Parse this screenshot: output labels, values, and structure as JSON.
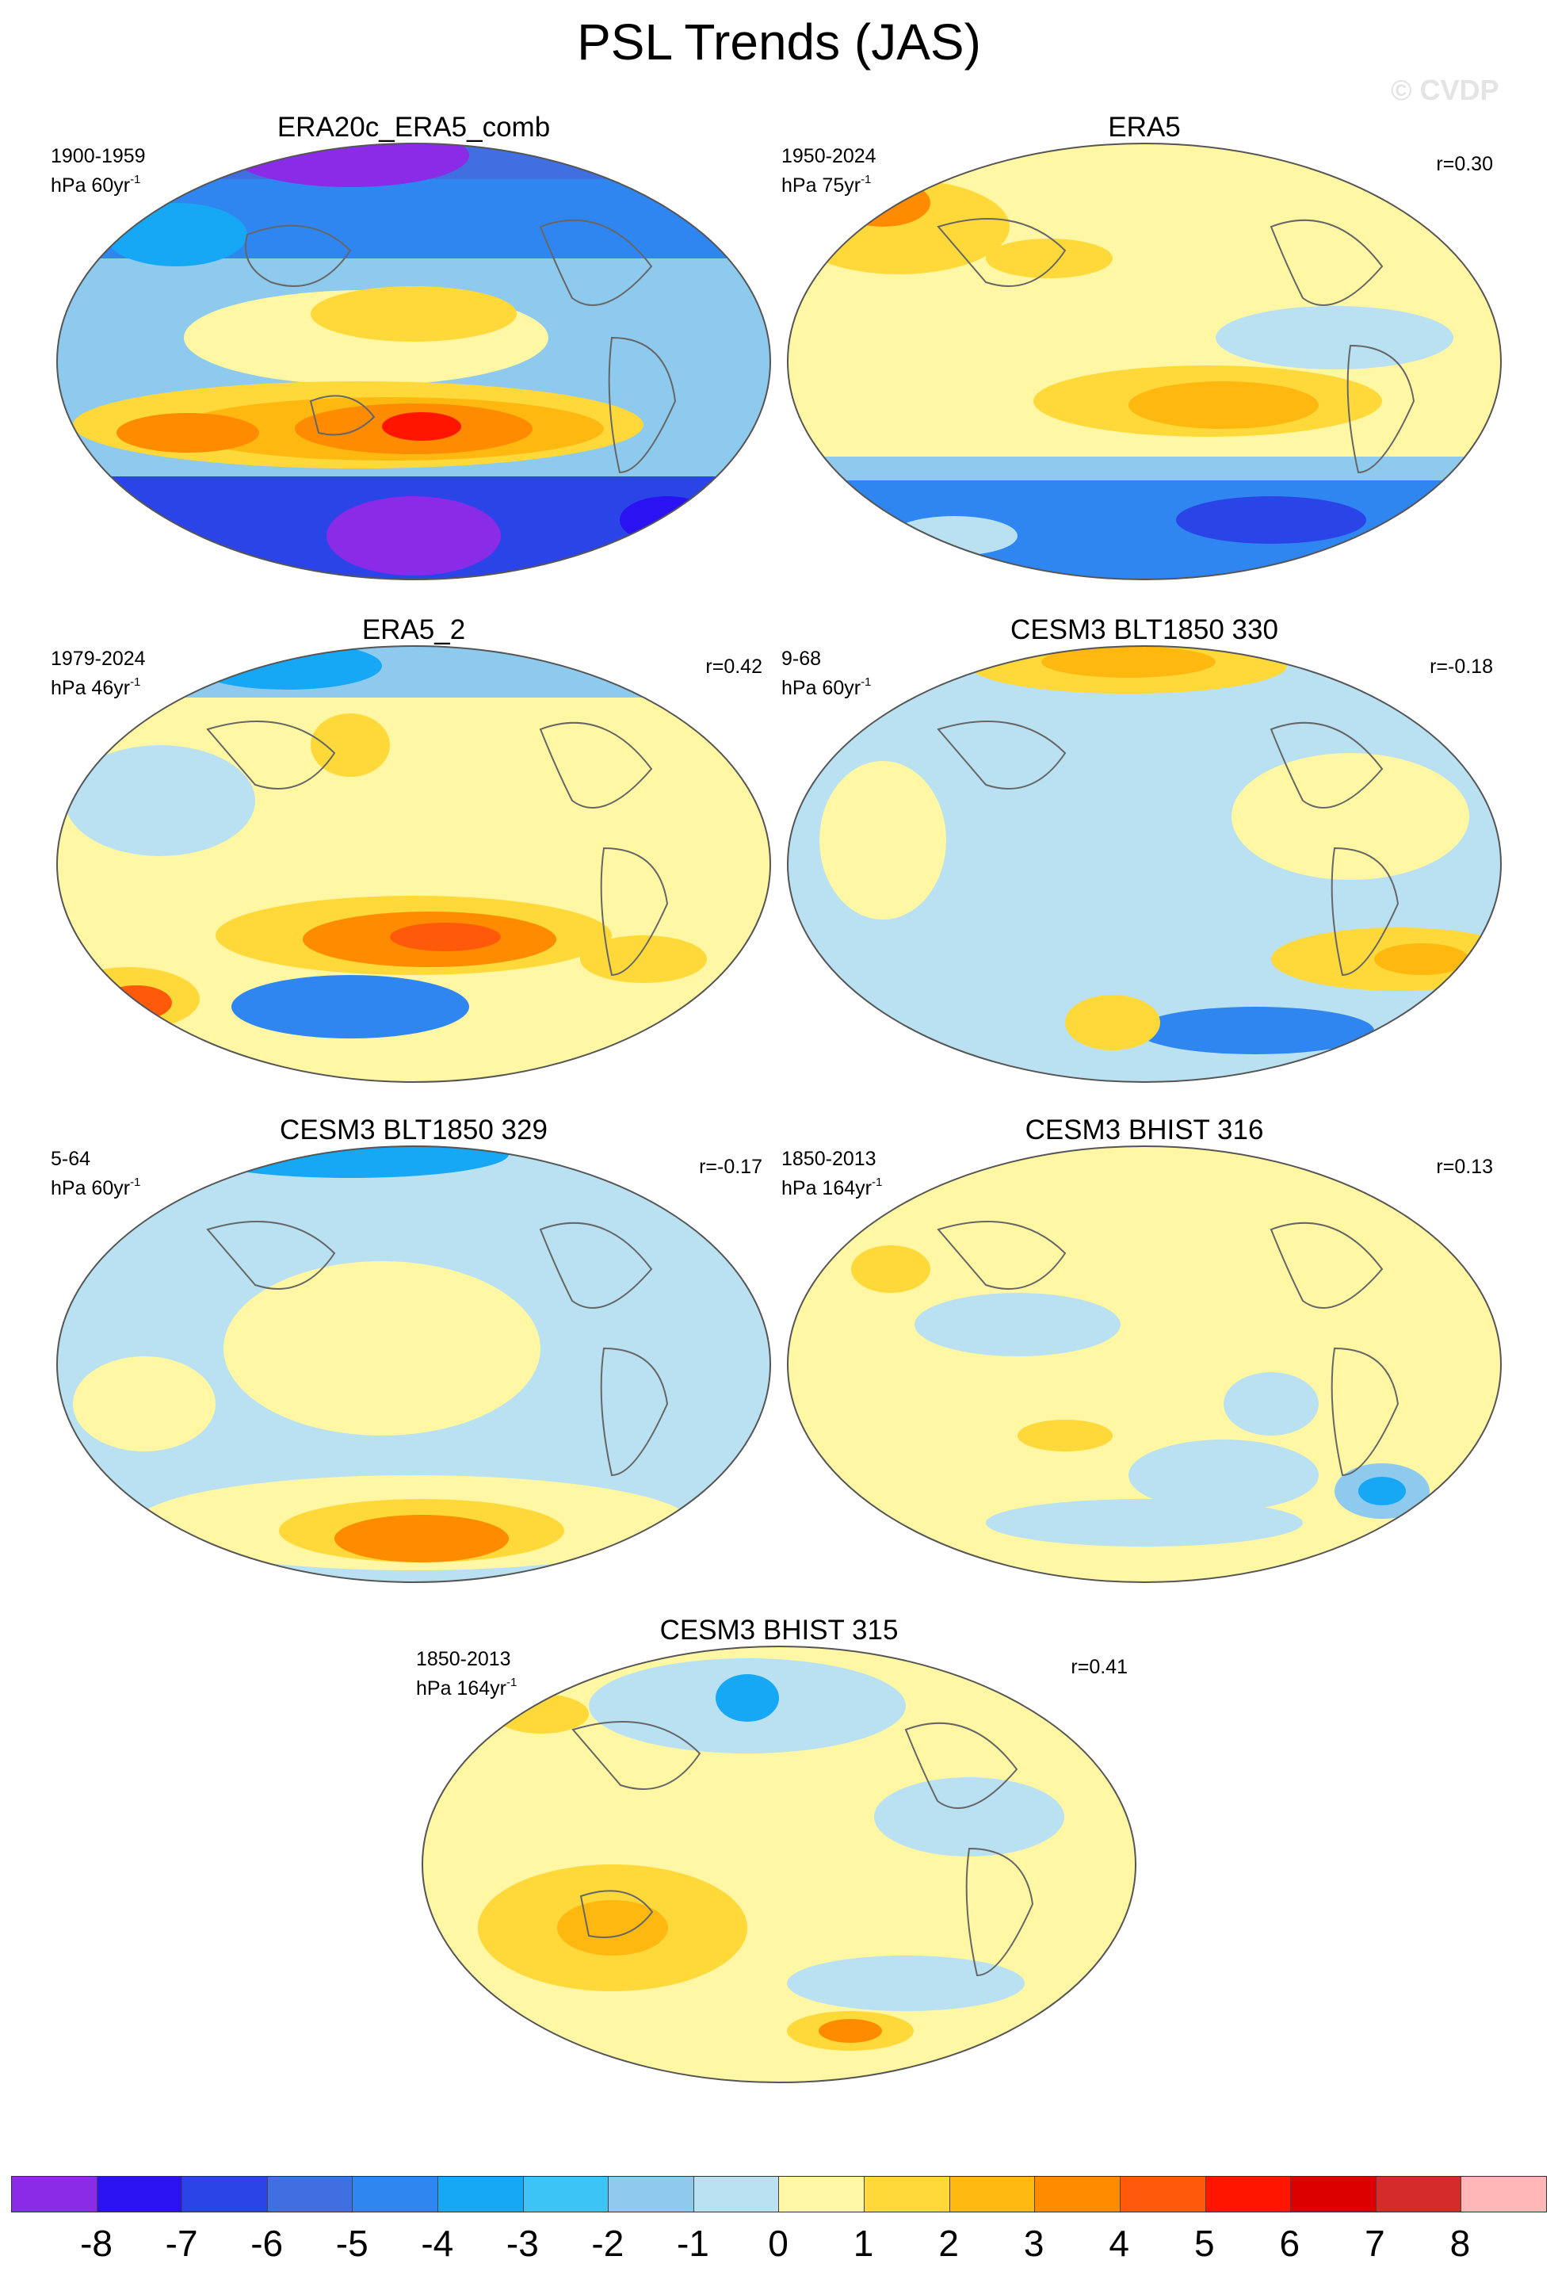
{
  "figure": {
    "title": "PSL Trends (JAS)",
    "watermark": "© CVDP"
  },
  "panels": [
    {
      "title": "ERA20c_ERA5_comb",
      "period": "1900-1959",
      "units_base": "hPa 60yr",
      "units_exp": "-1",
      "corr": ""
    },
    {
      "title": "ERA5",
      "period": "1950-2024",
      "units_base": "hPa 75yr",
      "units_exp": "-1",
      "corr": "r=0.30"
    },
    {
      "title": "ERA5_2",
      "period": "1979-2024",
      "units_base": "hPa 46yr",
      "units_exp": "-1",
      "corr": "r=0.42"
    },
    {
      "title": "CESM3 BLT1850 330",
      "period": "9-68",
      "units_base": "hPa 60yr",
      "units_exp": "-1",
      "corr": "r=-0.18"
    },
    {
      "title": "CESM3 BLT1850 329",
      "period": "5-64",
      "units_base": "hPa 60yr",
      "units_exp": "-1",
      "corr": "r=-0.17"
    },
    {
      "title": "CESM3 BHIST 316",
      "period": "1850-2013",
      "units_base": "hPa 164yr",
      "units_exp": "-1",
      "corr": "r=0.13"
    },
    {
      "title": "CESM3 BHIST 315",
      "period": "1850-2013",
      "units_base": "hPa 164yr",
      "units_exp": "-1",
      "corr": "r=0.41"
    }
  ],
  "colorbar": {
    "colors": [
      "#8a2be8",
      "#2a12f2",
      "#2a44e8",
      "#3f6fe0",
      "#2f86f0",
      "#17a8f5",
      "#3cc4f7",
      "#8ec9ee",
      "#b9e1f2",
      "#fff7a3",
      "#ffd93a",
      "#ffb810",
      "#ff8c00",
      "#ff5a0a",
      "#ff1500",
      "#dd0000",
      "#d62b2b",
      "#ffb6b6"
    ],
    "labels": [
      "-8",
      "-7",
      "-6",
      "-5",
      "-4",
      "-3",
      "-2",
      "-1",
      "0",
      "1",
      "2",
      "3",
      "4",
      "5",
      "6",
      "7",
      "8"
    ]
  }
}
